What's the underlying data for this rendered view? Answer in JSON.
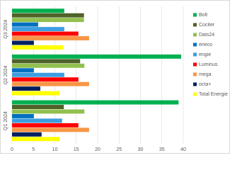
{
  "chart_data": {
    "type": "bar",
    "orientation": "horizontal",
    "categories": [
      "Q1 2024",
      "Q2 2024",
      "Q3 2024"
    ],
    "series": [
      {
        "name": "Bolt",
        "color": "#00b050",
        "values": [
          38.9,
          39.5,
          12.2
        ]
      },
      {
        "name": "Cociter",
        "color": "#4f6228",
        "values": [
          12.1,
          15.9,
          16.8
        ]
      },
      {
        "name": "Dats24",
        "color": "#92c050",
        "values": [
          16.9,
          16.9,
          16.8
        ]
      },
      {
        "name": "eneco",
        "color": "#0070c0",
        "values": [
          5.1,
          5.1,
          6.1
        ]
      },
      {
        "name": "engie",
        "color": "#3c9ee0",
        "values": [
          11.7,
          12.2,
          12.2
        ]
      },
      {
        "name": "Luminus",
        "color": "#ff0000",
        "values": [
          15.5,
          15.5,
          15.5
        ]
      },
      {
        "name": "mega",
        "color": "#f79646",
        "values": [
          18,
          18,
          18
        ]
      },
      {
        "name": "octa+",
        "color": "#002060",
        "values": [
          6.9,
          6.6,
          5.1
        ]
      },
      {
        "name": "Total Energie",
        "color": "#ffff00",
        "values": [
          11.1,
          11.1,
          12
        ]
      }
    ],
    "xlim": [
      0,
      40
    ],
    "xticks": [
      0,
      5,
      10,
      15,
      20,
      25,
      30,
      35,
      40
    ],
    "grid": true,
    "legend": "right"
  }
}
